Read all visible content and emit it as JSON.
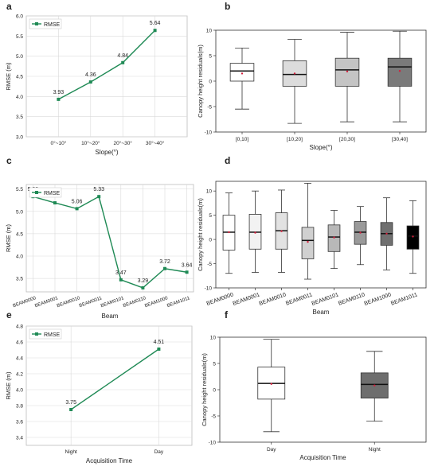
{
  "colors": {
    "line": "#1f8a55",
    "grid": "#d9d9d9",
    "box_colors": [
      "#ffffff",
      "#e0e0e0",
      "#c8c8c8",
      "#a8a8a8",
      "#8a8a8a",
      "#6a6a6a",
      "#3c3c3c",
      "#000000"
    ],
    "mean_marker": "#d21f3c"
  },
  "chart_data": [
    {
      "id": "a",
      "panel_label": "a",
      "type": "line",
      "legend": "RMSE",
      "categories": [
        "0°~10°",
        "10°~20°",
        "20°~30°",
        "30°~40°"
      ],
      "values": [
        3.93,
        4.36,
        4.84,
        5.64
      ],
      "data_labels": [
        "3.93",
        "4.36",
        "4.84",
        "5.64"
      ],
      "xlabel": "Slope(°)",
      "ylabel": "RMSE (m)",
      "ylim": [
        3.0,
        6.0
      ],
      "yticks": [
        "3.0",
        "3.5",
        "4.0",
        "4.5",
        "5.0",
        "5.5",
        "6.0"
      ],
      "grid": true,
      "legend_position": "top-left"
    },
    {
      "id": "b",
      "panel_label": "b",
      "type": "box",
      "categories": [
        "[0,10]",
        "[10,20]",
        "[20,30]",
        "[30,40]"
      ],
      "boxes": [
        {
          "min": -5.5,
          "q1": 0.0,
          "median": 2.0,
          "q3": 3.5,
          "max": 6.5,
          "mean": 1.5
        },
        {
          "min": -8.3,
          "q1": -1.0,
          "median": 1.3,
          "q3": 4.0,
          "max": 8.2,
          "mean": 1.5
        },
        {
          "min": -8.0,
          "q1": -1.0,
          "median": 2.2,
          "q3": 4.5,
          "max": 9.6,
          "mean": 1.9
        },
        {
          "min": -8.0,
          "q1": -1.0,
          "median": 2.8,
          "q3": 4.5,
          "max": 9.8,
          "mean": 2.0
        }
      ],
      "box_fill": [
        "#ffffff",
        "#dcdcdc",
        "#c4c4c4",
        "#7a7a7a"
      ],
      "xlabel": "Slope(°)",
      "ylabel": "Canopy height residuals(m)",
      "ylim": [
        -10,
        10
      ],
      "yticks": [
        "-10",
        "-5",
        "0",
        "5",
        "10"
      ]
    },
    {
      "id": "c",
      "panel_label": "c",
      "type": "line",
      "legend": "RMSE",
      "categories": [
        "BEAM0000",
        "BEAM0001",
        "BEAM0010",
        "BEAM0011",
        "BEAM0101",
        "BEAM0110",
        "BEAM1000",
        "BEAM1011"
      ],
      "values": [
        5.33,
        5.19,
        5.06,
        5.33,
        3.47,
        3.29,
        3.72,
        3.64
      ],
      "data_labels": [
        "5.33",
        "5.19",
        "5.06",
        "5.33",
        "3.47",
        "3.29",
        "3.72",
        "3.64"
      ],
      "xlabel": "Beam",
      "ylabel": "RMSE (m)",
      "ylim": [
        3.2,
        5.6
      ],
      "yticks": [
        "3.5",
        "4.0",
        "4.5",
        "5.0",
        "5.5"
      ],
      "grid": true,
      "legend_position": "top-left"
    },
    {
      "id": "d",
      "panel_label": "d",
      "type": "box",
      "categories": [
        "BEAM0000",
        "BEAM0001",
        "BEAM0010",
        "BEAM0011",
        "BEAM0101",
        "BEAM0110",
        "BEAM1000",
        "BEAM1011"
      ],
      "boxes": [
        {
          "min": -7.0,
          "q1": -2.2,
          "median": 1.5,
          "q3": 5.0,
          "max": 9.6,
          "mean": 1.5
        },
        {
          "min": -6.8,
          "q1": -2.0,
          "median": 1.5,
          "q3": 5.2,
          "max": 10.0,
          "mean": 1.4
        },
        {
          "min": -6.8,
          "q1": -2.0,
          "median": 1.8,
          "q3": 5.5,
          "max": 10.2,
          "mean": 1.7
        },
        {
          "min": -8.2,
          "q1": -4.0,
          "median": -0.2,
          "q3": 2.5,
          "max": 11.6,
          "mean": -0.5
        },
        {
          "min": -6.0,
          "q1": -2.5,
          "median": 0.5,
          "q3": 3.0,
          "max": 6.0,
          "mean": 0.4
        },
        {
          "min": -5.2,
          "q1": -1.0,
          "median": 1.5,
          "q3": 3.7,
          "max": 6.8,
          "mean": 1.4
        },
        {
          "min": -6.3,
          "q1": -1.2,
          "median": 1.2,
          "q3": 3.5,
          "max": 8.6,
          "mean": 1.2
        },
        {
          "min": -7.0,
          "q1": -2.0,
          "median": 0.7,
          "q3": 2.8,
          "max": 8.0,
          "mean": 0.6
        }
      ],
      "box_fill": [
        "#ffffff",
        "#f2f2f2",
        "#e2e2e2",
        "#d0d0d0",
        "#b8b8b8",
        "#9a9a9a",
        "#707070",
        "#000000"
      ],
      "xlabel": "Beam",
      "ylabel": "Canopy height residuals(m)",
      "ylim": [
        -10,
        12
      ],
      "yticks": [
        "-10",
        "-5",
        "0",
        "5",
        "10"
      ]
    },
    {
      "id": "e",
      "panel_label": "e",
      "type": "line",
      "legend": "RMSE",
      "categories": [
        "Night",
        "Day"
      ],
      "values": [
        3.75,
        4.51
      ],
      "data_labels": [
        "3.75",
        "4.51"
      ],
      "xlabel": "Acquisition Time",
      "ylabel": "RMSE (m)",
      "ylim": [
        3.3,
        4.8
      ],
      "yticks": [
        "3.4",
        "3.6",
        "3.8",
        "4.0",
        "4.2",
        "4.4",
        "4.6",
        "4.8"
      ],
      "grid": true,
      "legend_position": "top-left"
    },
    {
      "id": "f",
      "panel_label": "f",
      "type": "box",
      "categories": [
        "Day",
        "Night"
      ],
      "boxes": [
        {
          "min": -8.0,
          "q1": -1.8,
          "median": 1.2,
          "q3": 4.3,
          "max": 9.6,
          "mean": 1.1
        },
        {
          "min": -6.0,
          "q1": -1.6,
          "median": 1.0,
          "q3": 3.2,
          "max": 7.3,
          "mean": 0.8
        }
      ],
      "box_fill": [
        "#ffffff",
        "#6e6e6e"
      ],
      "xlabel": "Acquisition Time",
      "ylabel": "Canopy height residuals(m)",
      "ylim": [
        -10,
        10
      ],
      "yticks": [
        "-10",
        "-5",
        "0",
        "5",
        "10"
      ]
    }
  ]
}
